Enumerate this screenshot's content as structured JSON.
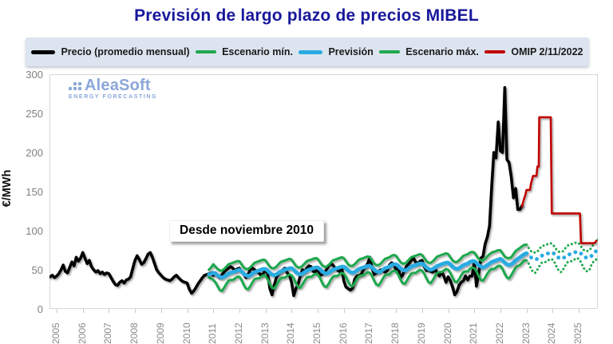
{
  "title": "Previsión de largo plazo de precios MIBEL",
  "title_color": "#18189b",
  "watermark": {
    "brand": "AleaSoft",
    "tagline": "ENERGY FORECASTING"
  },
  "legend_bg": "#dce4ef",
  "legend": [
    {
      "label": "Precio (promedio mensual)",
      "color": "#000000",
      "thick": true
    },
    {
      "label": "Escenario mín.",
      "color": "#1fa84d",
      "thick": false
    },
    {
      "label": "Previsión",
      "color": "#29abe2",
      "thick": true
    },
    {
      "label": "Escenario máx.",
      "color": "#1fa84d",
      "thick": false
    },
    {
      "label": "OMIP 2/11/2022",
      "color": "#c00000",
      "thick": false
    }
  ],
  "annotation": "Desde noviembre 2010",
  "chart_data": {
    "type": "line",
    "title": "Previsión de largo plazo de precios MIBEL",
    "xlabel": "",
    "ylabel": "€/MWh",
    "ylim": [
      0,
      300
    ],
    "yticks": [
      0,
      50,
      100,
      150,
      200,
      250,
      300
    ],
    "xticks": [
      2005,
      2006,
      2007,
      2008,
      2009,
      2010,
      2011,
      2012,
      2013,
      2014,
      2015,
      2016,
      2017,
      2018,
      2019,
      2020,
      2021,
      2022,
      2023,
      2024,
      2025
    ],
    "x_range_years": [
      2004.75,
      2025.73
    ],
    "grid": false,
    "legend_position": "top",
    "annotation": {
      "text": "Desde noviembre 2010",
      "meaning": "forecast scenarios start November 2010"
    },
    "series": [
      {
        "name": "Precio (promedio mensual)",
        "color": "#000000",
        "width": 3.6,
        "kind": "monthly",
        "start_year": 2004.75,
        "solid_until": 2023.0,
        "values": [
          41,
          43,
          40,
          42,
          45,
          50,
          56,
          48,
          46,
          53,
          60,
          55,
          66,
          61,
          65,
          72,
          65,
          58,
          62,
          54,
          50,
          47,
          49,
          45,
          47,
          44,
          46,
          45,
          40,
          35,
          31,
          30,
          34,
          36,
          33,
          37,
          38,
          41,
          52,
          62,
          68,
          63,
          57,
          59,
          64,
          70,
          72,
          66,
          58,
          50,
          46,
          43,
          40,
          38,
          37,
          36,
          38,
          41,
          43,
          40,
          37,
          35,
          34,
          33,
          25,
          20,
          23,
          27,
          32,
          36,
          40,
          43,
          44,
          45,
          46,
          43,
          46,
          42,
          40,
          44,
          47,
          50,
          52,
          54,
          52,
          49,
          51,
          52,
          48,
          45,
          40,
          44,
          50,
          52,
          50,
          48,
          46,
          43,
          45,
          50,
          45,
          26,
          18,
          30,
          40,
          45,
          48,
          50,
          52,
          46,
          43,
          34,
          17,
          26,
          32,
          42,
          50,
          48,
          52,
          55,
          54,
          48,
          47,
          52,
          43,
          44,
          46,
          50,
          55,
          58,
          56,
          52,
          50,
          48,
          53,
          36,
          28,
          26,
          24,
          26,
          38,
          42,
          43,
          44,
          50,
          54,
          58,
          66,
          52,
          44,
          46,
          48,
          50,
          49,
          47,
          49,
          56,
          59,
          57,
          50,
          55,
          40,
          43,
          50,
          55,
          58,
          62,
          65,
          60,
          58,
          61,
          62,
          54,
          49,
          50,
          48,
          47,
          51,
          45,
          42,
          47,
          42,
          34,
          41,
          36,
          28,
          18,
          22,
          30,
          34,
          36,
          42,
          37,
          42,
          42,
          60,
          29,
          45,
          65,
          67,
          83,
          92,
          106,
          156,
          200,
          193,
          239,
          202,
          200,
          283,
          191,
          187,
          169,
          142,
          154,
          127,
          127,
          132
        ]
      },
      {
        "name": "Escenario mín.",
        "color": "#1fa84d",
        "width": 3,
        "kind": "monthly",
        "start_year": 2010.8333,
        "solid_until": 2023.0,
        "values": [
          40,
          39,
          37,
          34,
          29,
          24,
          23,
          27,
          32,
          36,
          37,
          37,
          39,
          41,
          41,
          37,
          31,
          26,
          25,
          29,
          34,
          38,
          39,
          39,
          41,
          43,
          42,
          38,
          32,
          27,
          26,
          30,
          35,
          39,
          40,
          40,
          42,
          44,
          43,
          39,
          33,
          28,
          27,
          31,
          36,
          40,
          41,
          41,
          43,
          45,
          44,
          40,
          34,
          29,
          28,
          32,
          37,
          41,
          42,
          42,
          44,
          46,
          45,
          41,
          35,
          30,
          29,
          33,
          38,
          42,
          43,
          43,
          45,
          47,
          46,
          42,
          36,
          31,
          30,
          34,
          39,
          43,
          44,
          44,
          47,
          49,
          48,
          44,
          38,
          33,
          32,
          36,
          41,
          45,
          46,
          46,
          48,
          50,
          49,
          45,
          39,
          34,
          33,
          37,
          42,
          46,
          47,
          47,
          49,
          51,
          50,
          46,
          40,
          35,
          34,
          38,
          43,
          47,
          48,
          48,
          51,
          53,
          52,
          48,
          42,
          37,
          36,
          40,
          45,
          49,
          51,
          51,
          53,
          55,
          55,
          51,
          45,
          40,
          39,
          43,
          48,
          53,
          55,
          56,
          59,
          62,
          62,
          58,
          52,
          47,
          46,
          50,
          55,
          59,
          60,
          60,
          62,
          64,
          63,
          59,
          53,
          48,
          47,
          51,
          56,
          60,
          61,
          61,
          63,
          65,
          64,
          60,
          54,
          49,
          48,
          50,
          57,
          61,
          63,
          66
        ]
      },
      {
        "name": "Previsión",
        "color": "#29abe2",
        "width": 4.8,
        "kind": "monthly",
        "start_year": 2010.8333,
        "solid_until": 2023.0,
        "values": [
          44,
          45,
          46,
          45,
          43,
          41,
          40,
          41,
          43,
          45,
          46,
          47,
          48,
          49,
          50,
          48,
          45,
          43,
          42,
          43,
          45,
          47,
          48,
          49,
          50,
          51,
          51,
          49,
          46,
          44,
          43,
          44,
          46,
          48,
          49,
          50,
          51,
          52,
          52,
          50,
          47,
          45,
          44,
          45,
          47,
          49,
          50,
          51,
          52,
          53,
          53,
          51,
          48,
          46,
          45,
          46,
          48,
          50,
          51,
          52,
          53,
          54,
          54,
          52,
          49,
          47,
          46,
          47,
          49,
          51,
          52,
          53,
          54,
          55,
          55,
          53,
          50,
          48,
          47,
          48,
          50,
          52,
          53,
          54,
          56,
          57,
          57,
          55,
          52,
          50,
          49,
          50,
          52,
          54,
          55,
          56,
          57,
          58,
          58,
          56,
          53,
          51,
          50,
          51,
          53,
          55,
          56,
          57,
          58,
          59,
          59,
          57,
          54,
          52,
          51,
          52,
          54,
          56,
          57,
          58,
          60,
          61,
          61,
          59,
          56,
          54,
          53,
          54,
          56,
          58,
          60,
          61,
          62,
          63,
          64,
          62,
          59,
          57,
          56,
          57,
          59,
          62,
          64,
          66,
          68,
          70,
          71,
          69,
          66,
          64,
          63,
          64,
          66,
          68,
          69,
          70,
          71,
          72,
          72,
          70,
          67,
          65,
          64,
          65,
          67,
          69,
          70,
          71,
          72,
          73,
          73,
          71,
          68,
          66,
          65,
          66,
          68,
          71,
          74,
          77
        ]
      },
      {
        "name": "Escenario máx.",
        "color": "#1fa84d",
        "width": 3,
        "kind": "monthly",
        "start_year": 2010.8333,
        "solid_until": 2023.0,
        "values": [
          50,
          53,
          57,
          54,
          51,
          49,
          49,
          51,
          54,
          57,
          58,
          59,
          60,
          61,
          61,
          57,
          53,
          51,
          51,
          53,
          56,
          59,
          60,
          61,
          62,
          63,
          62,
          58,
          54,
          52,
          52,
          54,
          57,
          60,
          61,
          62,
          63,
          64,
          63,
          59,
          55,
          53,
          53,
          55,
          58,
          61,
          62,
          63,
          64,
          65,
          64,
          60,
          56,
          54,
          54,
          56,
          59,
          62,
          63,
          64,
          65,
          66,
          65,
          61,
          57,
          55,
          55,
          57,
          60,
          63,
          64,
          65,
          66,
          67,
          66,
          62,
          58,
          56,
          56,
          58,
          61,
          64,
          65,
          66,
          68,
          69,
          68,
          64,
          60,
          58,
          58,
          60,
          63,
          66,
          67,
          68,
          69,
          70,
          69,
          65,
          61,
          59,
          59,
          61,
          64,
          67,
          68,
          69,
          70,
          71,
          70,
          66,
          62,
          60,
          60,
          62,
          65,
          68,
          69,
          70,
          72,
          73,
          72,
          68,
          64,
          62,
          62,
          64,
          67,
          70,
          72,
          73,
          74,
          75,
          75,
          71,
          67,
          65,
          65,
          66,
          70,
          74,
          76,
          78,
          80,
          82,
          82,
          78,
          74,
          72,
          72,
          73,
          77,
          80,
          81,
          82,
          83,
          84,
          83,
          79,
          75,
          73,
          73,
          74,
          78,
          81,
          82,
          83,
          84,
          85,
          84,
          80,
          76,
          74,
          74,
          75,
          79,
          83,
          86,
          89
        ]
      },
      {
        "name": "OMIP 2/11/2022",
        "color": "#c00000",
        "width": 2.6,
        "kind": "points",
        "points": [
          [
            2022.83,
            131
          ],
          [
            2022.9,
            140
          ],
          [
            2022.96,
            146
          ],
          [
            2023.0,
            152
          ],
          [
            2023.13,
            152
          ],
          [
            2023.17,
            160
          ],
          [
            2023.21,
            165
          ],
          [
            2023.25,
            170
          ],
          [
            2023.38,
            170
          ],
          [
            2023.4,
            176
          ],
          [
            2023.42,
            182
          ],
          [
            2023.47,
            182
          ],
          [
            2023.49,
            245
          ],
          [
            2023.93,
            245
          ],
          [
            2023.97,
            122
          ],
          [
            2025.05,
            122
          ],
          [
            2025.09,
            84
          ],
          [
            2025.6,
            84
          ],
          [
            2025.68,
            87
          ]
        ]
      }
    ]
  }
}
